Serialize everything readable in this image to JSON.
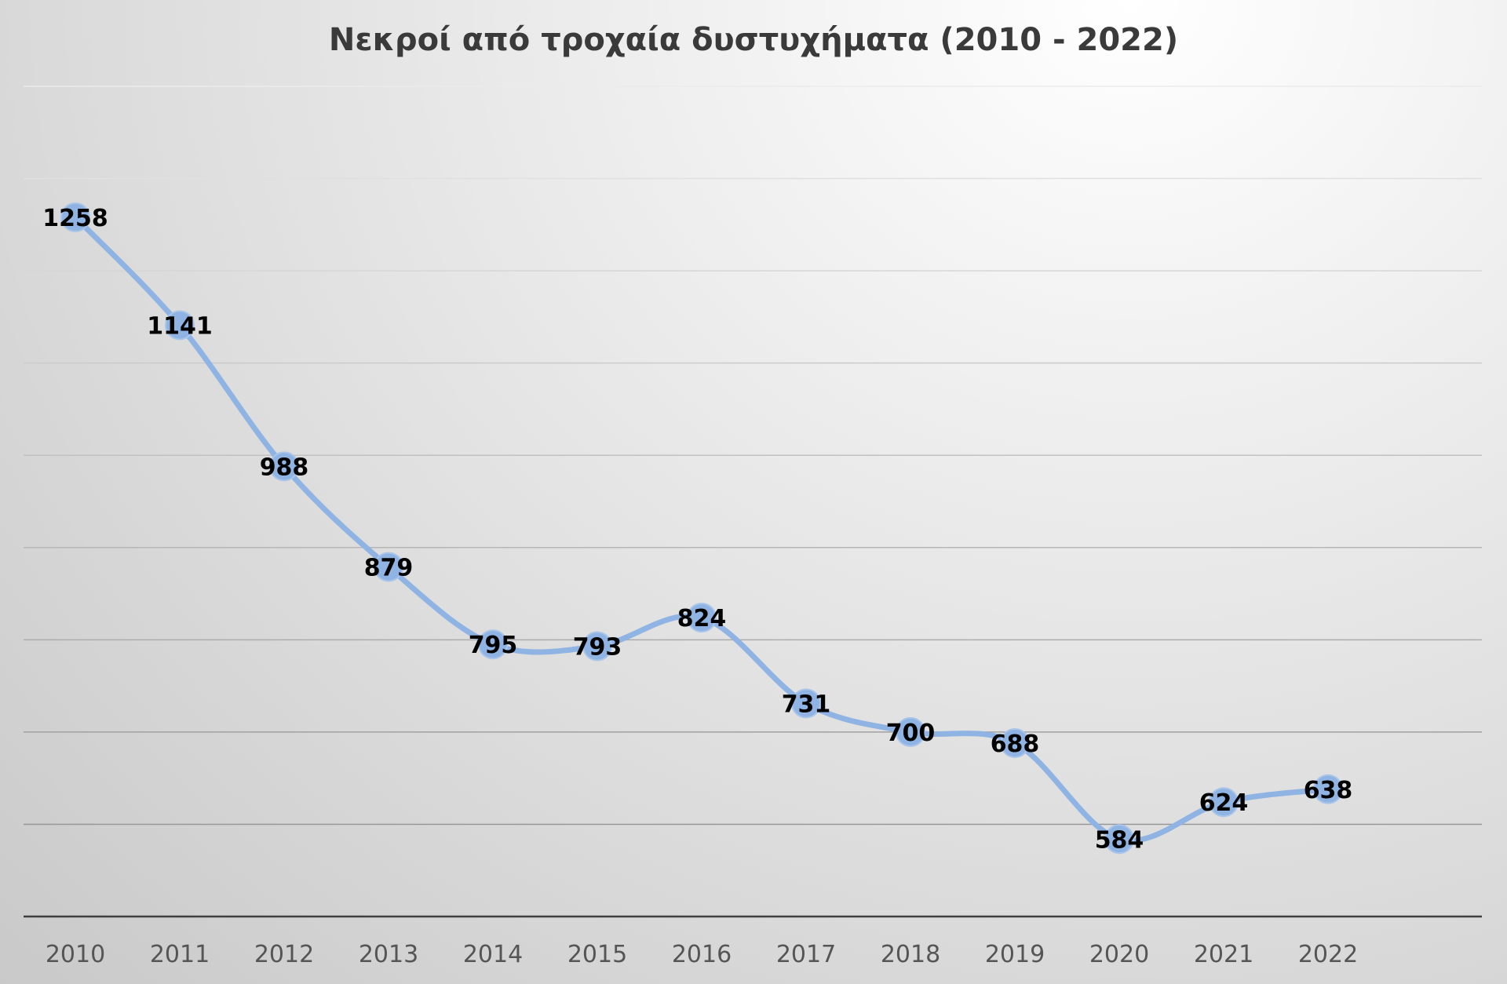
{
  "chart_data": {
    "type": "line",
    "title": "Νεκροί από τροχαία δυστυχήματα (2010 - 2022)",
    "xlabel": "",
    "ylabel": "",
    "categories": [
      "2010",
      "2011",
      "2012",
      "2013",
      "2014",
      "2015",
      "2016",
      "2017",
      "2018",
      "2019",
      "2020",
      "2021",
      "2022"
    ],
    "series": [
      {
        "values": [
          1258,
          1141,
          988,
          879,
          795,
          793,
          824,
          731,
          700,
          688,
          584,
          624,
          638
        ]
      }
    ],
    "ylim": [
      500,
      1400
    ],
    "y_gridline_step": 100,
    "y_tick_labels_visible": false,
    "grid": true,
    "smooth_line": true,
    "markers": true,
    "data_labels": true,
    "legend": "none",
    "line_color": "#8fb4e3"
  }
}
